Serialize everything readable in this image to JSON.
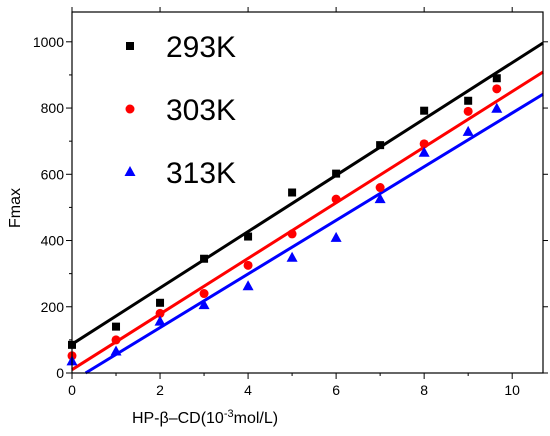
{
  "chart_data": {
    "type": "scatter",
    "title": "",
    "xlabel_parts": [
      "HP-β–CD(10",
      "-3",
      "mol/L)"
    ],
    "ylabel": "Fmax",
    "xlim": [
      0,
      10.7
    ],
    "ylim": [
      0,
      1090
    ],
    "xticks": [
      0,
      2,
      4,
      6,
      8,
      10
    ],
    "yticks": [
      0,
      200,
      400,
      600,
      800,
      1000
    ],
    "grid": false,
    "legend_position": "top-left",
    "series": [
      {
        "name": "293K",
        "color": "#000000",
        "marker": "square",
        "x": [
          0,
          1,
          2,
          3,
          4,
          5,
          6,
          7,
          8,
          9,
          9.65
        ],
        "y": [
          85,
          140,
          212,
          345,
          412,
          545,
          602,
          688,
          792,
          822,
          890
        ],
        "fit": {
          "slope": 85,
          "intercept": 87
        }
      },
      {
        "name": "303K",
        "color": "#ff0000",
        "marker": "circle",
        "x": [
          0,
          1,
          2,
          3,
          4,
          5,
          6,
          7,
          8,
          9,
          9.65
        ],
        "y": [
          52,
          100,
          180,
          240,
          325,
          420,
          525,
          560,
          692,
          790,
          858
        ],
        "fit": {
          "slope": 84,
          "intercept": 10
        }
      },
      {
        "name": "313K",
        "color": "#0000ff",
        "marker": "triangle",
        "x": [
          0,
          1,
          2,
          3,
          4,
          5,
          6,
          7,
          8,
          9,
          9.65
        ],
        "y": [
          35,
          65,
          155,
          205,
          262,
          348,
          408,
          525,
          665,
          728,
          798
        ],
        "fit": {
          "slope": 81,
          "intercept": -25
        }
      }
    ]
  }
}
